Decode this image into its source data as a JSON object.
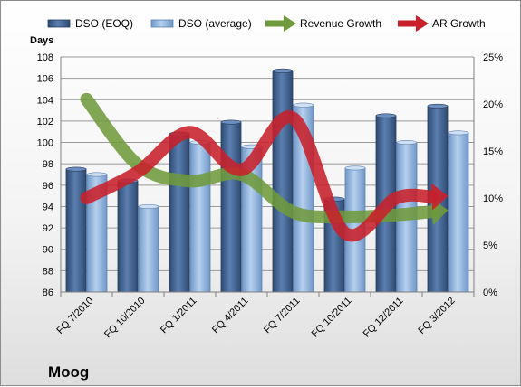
{
  "chart_data": {
    "type": "bar",
    "title": "Moog",
    "ylabel": "Days",
    "ylim": [
      86,
      108
    ],
    "yticks": [
      "86",
      "88",
      "90",
      "92",
      "94",
      "96",
      "98",
      "100",
      "102",
      "104",
      "106",
      "108"
    ],
    "y2lim": [
      0,
      25
    ],
    "y2ticks": [
      "0%",
      "5%",
      "10%",
      "15%",
      "20%",
      "25%"
    ],
    "categories": [
      "FQ 7/2010",
      "FQ 10/2010",
      "FQ 1/2011",
      "FQ 4/2011",
      "FQ 7/2011",
      "FQ 10/2011",
      "FQ 12/2011",
      "FQ 3/2012"
    ],
    "grid": true,
    "legend_position": "top",
    "series": [
      {
        "name": "DSO (EOQ)",
        "kind": "bar",
        "axis": "left",
        "color": "#3d5f8f",
        "values": [
          97.5,
          96.4,
          100.8,
          101.9,
          106.7,
          94.7,
          102.5,
          103.4
        ]
      },
      {
        "name": "DSO (average)",
        "kind": "bar",
        "axis": "left",
        "color": "#8fb4dc",
        "values": [
          97.0,
          94.0,
          100.0,
          99.6,
          103.5,
          97.6,
          100.0,
          100.9
        ]
      },
      {
        "name": "Revenue Growth",
        "kind": "line",
        "axis": "right",
        "unit": "%",
        "color": "#6f9a3c",
        "values": [
          20.5,
          13.5,
          11.8,
          12.5,
          8.5,
          8.0,
          8.2,
          8.7
        ]
      },
      {
        "name": "AR Growth",
        "kind": "line",
        "axis": "right",
        "unit": "%",
        "color": "#c8202a",
        "values": [
          10.0,
          12.8,
          17.0,
          13.0,
          18.5,
          6.3,
          10.0,
          10.2
        ]
      }
    ]
  }
}
